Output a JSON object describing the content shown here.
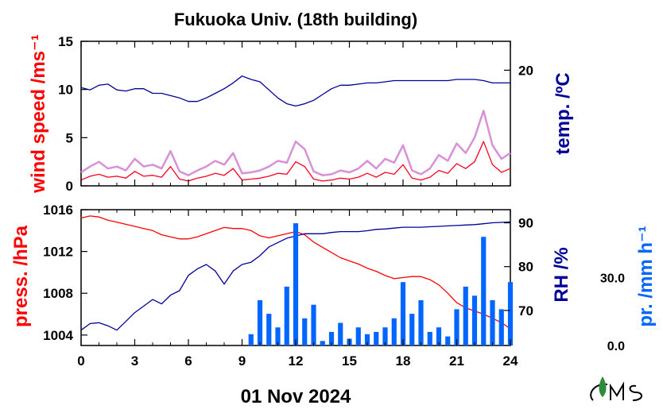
{
  "title": "Fukuoka Univ. (18th building)",
  "date_label": "01 Nov 2024",
  "colors": {
    "wind": "#ff0022",
    "wind_gust": "#d890d8",
    "temp": "#000099",
    "press": "#ff0000",
    "rh": "#000099",
    "precip": "#0066ff",
    "logo": "#2e8b3c"
  },
  "chart_data": [
    {
      "type": "line",
      "title": "",
      "xlabel": "01 Nov 2024",
      "xlim": [
        0,
        24
      ],
      "xticks": [
        "0",
        "3",
        "6",
        "9",
        "12",
        "15",
        "18",
        "21",
        "24"
      ],
      "grid": false,
      "axes": {
        "left": {
          "label": "wind speed /ms⁻¹",
          "ticks": [
            "0",
            "5",
            "10",
            "15"
          ],
          "ylim": [
            0,
            15
          ]
        },
        "right": {
          "label": "temp. /ºC",
          "ticks": [
            "20"
          ],
          "ylim": [
            10,
            22.5
          ]
        }
      },
      "x": [
        0.0,
        0.5,
        1.0,
        1.5,
        2.0,
        2.5,
        3.0,
        3.5,
        4.0,
        4.5,
        5.0,
        5.5,
        6.0,
        6.5,
        7.0,
        7.5,
        8.0,
        8.5,
        9.0,
        9.5,
        10.0,
        10.5,
        11.0,
        11.5,
        12.0,
        12.5,
        13.0,
        13.5,
        14.0,
        14.5,
        15.0,
        15.5,
        16.0,
        16.5,
        17.0,
        17.5,
        18.0,
        18.5,
        19.0,
        19.5,
        20.0,
        20.5,
        21.0,
        21.5,
        22.0,
        22.5,
        23.0,
        23.5,
        24.0
      ],
      "series": [
        {
          "name": "wind speed",
          "axis": "left",
          "values": [
            0.6,
            1.0,
            1.2,
            0.9,
            1.0,
            0.8,
            1.5,
            1.0,
            1.1,
            0.9,
            2.0,
            0.7,
            0.5,
            0.8,
            1.0,
            1.3,
            1.1,
            1.8,
            0.6,
            0.7,
            0.8,
            1.0,
            1.3,
            1.2,
            2.5,
            2.0,
            0.7,
            0.5,
            0.6,
            0.8,
            0.7,
            0.9,
            1.3,
            0.9,
            1.4,
            1.2,
            2.2,
            0.8,
            0.6,
            0.9,
            1.6,
            1.3,
            2.3,
            1.8,
            2.5,
            4.6,
            2.2,
            1.4,
            1.8
          ]
        },
        {
          "name": "wind gust",
          "axis": "left",
          "values": [
            1.4,
            2.0,
            2.5,
            1.8,
            2.0,
            1.6,
            2.8,
            2.0,
            2.2,
            1.8,
            3.6,
            1.5,
            1.1,
            1.6,
            2.0,
            2.6,
            2.2,
            3.4,
            1.3,
            1.4,
            1.6,
            2.0,
            2.6,
            2.4,
            4.6,
            3.8,
            1.5,
            1.1,
            1.2,
            1.6,
            1.4,
            1.8,
            2.6,
            1.8,
            2.8,
            2.4,
            4.2,
            1.6,
            1.2,
            1.8,
            3.2,
            2.6,
            4.4,
            3.4,
            5.0,
            7.8,
            4.2,
            2.8,
            3.4
          ]
        },
        {
          "name": "temperature",
          "axis": "right",
          "values": [
            18.5,
            18.3,
            18.7,
            18.8,
            18.3,
            18.2,
            18.4,
            18.4,
            18.0,
            18.0,
            17.8,
            17.6,
            17.3,
            17.3,
            17.6,
            18.0,
            18.4,
            18.9,
            19.5,
            19.2,
            19.0,
            18.3,
            17.6,
            17.1,
            16.9,
            17.1,
            17.4,
            17.9,
            18.4,
            18.7,
            18.7,
            18.8,
            18.9,
            18.9,
            19.0,
            19.1,
            19.1,
            19.1,
            19.1,
            19.1,
            19.1,
            19.1,
            19.2,
            19.2,
            19.2,
            19.1,
            18.9,
            18.9,
            18.9
          ]
        }
      ]
    },
    {
      "type": "line",
      "title": "",
      "xlabel": "01 Nov 2024",
      "xlim": [
        0,
        24
      ],
      "xticks": [
        "0",
        "3",
        "6",
        "9",
        "12",
        "15",
        "18",
        "21",
        "24"
      ],
      "grid": false,
      "axes": {
        "left": {
          "label": "press. /hPa",
          "ticks": [
            "1004",
            "1008",
            "1012",
            "1016"
          ],
          "ylim": [
            1003.0,
            1016.0
          ]
        },
        "right": {
          "label": "RH /%",
          "ticks": [
            "70",
            "80",
            "90"
          ],
          "ylim": [
            62,
            93
          ]
        },
        "right2": {
          "label": "pr. /mm h⁻¹",
          "ticks": [
            "0.0",
            "30.0"
          ],
          "ylim": [
            0,
            60
          ]
        }
      },
      "x": [
        0.0,
        0.5,
        1.0,
        1.5,
        2.0,
        2.5,
        3.0,
        3.5,
        4.0,
        4.5,
        5.0,
        5.5,
        6.0,
        6.5,
        7.0,
        7.5,
        8.0,
        8.5,
        9.0,
        9.5,
        10.0,
        10.5,
        11.0,
        11.5,
        12.0,
        12.5,
        13.0,
        13.5,
        14.0,
        14.5,
        15.0,
        15.5,
        16.0,
        16.5,
        17.0,
        17.5,
        18.0,
        18.5,
        19.0,
        19.5,
        20.0,
        20.5,
        21.0,
        21.5,
        22.0,
        22.5,
        23.0,
        23.5,
        24.0
      ],
      "series": [
        {
          "name": "pressure",
          "axis": "left",
          "values": [
            1015.2,
            1015.4,
            1015.3,
            1015.0,
            1014.8,
            1014.6,
            1014.4,
            1014.2,
            1014.0,
            1013.6,
            1013.4,
            1013.2,
            1013.2,
            1013.4,
            1013.7,
            1014.0,
            1014.3,
            1014.2,
            1014.2,
            1014.0,
            1013.5,
            1013.3,
            1013.5,
            1013.7,
            1013.9,
            1013.6,
            1012.9,
            1012.4,
            1011.9,
            1011.4,
            1011.1,
            1010.8,
            1010.4,
            1010.1,
            1009.7,
            1009.4,
            1009.5,
            1009.6,
            1009.6,
            1009.3,
            1008.8,
            1008.0,
            1007.1,
            1006.6,
            1006.3,
            1006.0,
            1005.6,
            1005.2,
            1004.6
          ]
        },
        {
          "name": "relative humidity",
          "axis": "right",
          "values": [
            65.5,
            67.0,
            67.2,
            66.5,
            65.5,
            67.5,
            69.5,
            71.0,
            72.5,
            71.5,
            73.5,
            74.5,
            78.0,
            79.5,
            80.5,
            79.0,
            76.0,
            79.0,
            80.5,
            81.0,
            82.5,
            84.5,
            85.5,
            86.5,
            87.0,
            87.5,
            87.5,
            87.5,
            87.8,
            88.0,
            88.0,
            88.0,
            88.2,
            88.5,
            88.6,
            88.8,
            89.0,
            89.0,
            89.0,
            89.1,
            89.2,
            89.3,
            89.4,
            89.5,
            89.6,
            89.8,
            90.0,
            90.1,
            90.2
          ]
        },
        {
          "name": "precipitation",
          "axis": "right2",
          "values": [
            0,
            0,
            0,
            0,
            0,
            0,
            0,
            0,
            0,
            0,
            0,
            0,
            0,
            0,
            0,
            0,
            0,
            0,
            0,
            5,
            20,
            14,
            8,
            26,
            54,
            12,
            18,
            2,
            6,
            10,
            3,
            8,
            5,
            6,
            8,
            12,
            28,
            14,
            20,
            6,
            8,
            4,
            16,
            26,
            22,
            48,
            20,
            16,
            28
          ]
        }
      ]
    }
  ]
}
